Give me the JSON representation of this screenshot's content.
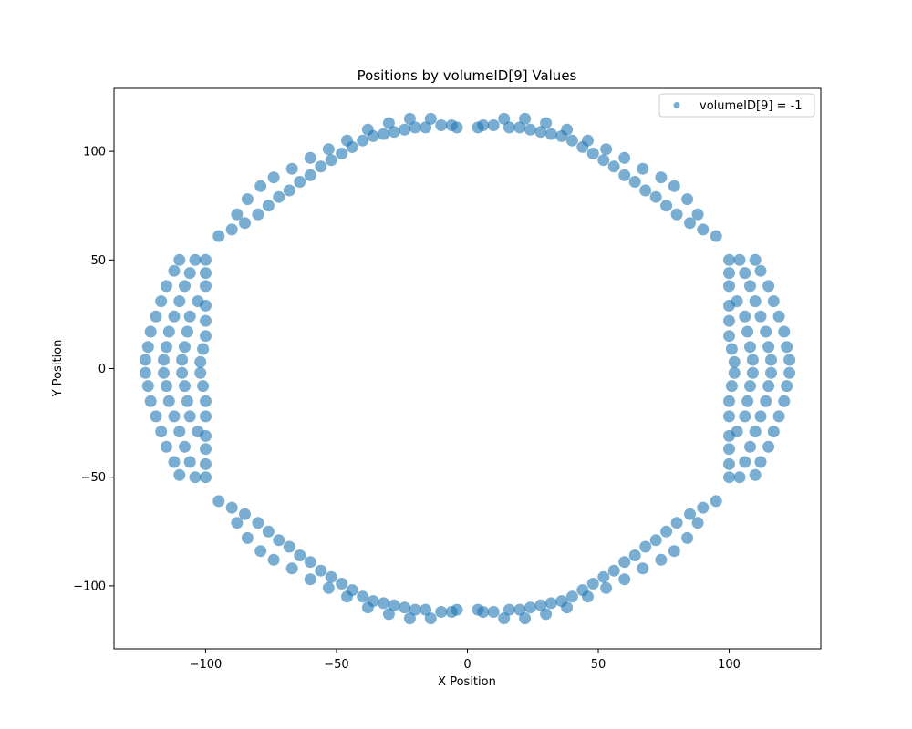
{
  "chart_data": {
    "type": "scatter",
    "title": "Positions by volumeID[9] Values",
    "xlabel": "X Position",
    "ylabel": "Y Position",
    "xlim": [
      -135,
      135
    ],
    "ylim": [
      -129,
      129
    ],
    "xticks": [
      -100,
      -50,
      0,
      50,
      100
    ],
    "yticks": [
      -100,
      -50,
      0,
      50,
      100
    ],
    "xtick_labels": [
      "−100",
      "−50",
      "0",
      "50",
      "100"
    ],
    "ytick_labels": [
      "−100",
      "−50",
      "0",
      "50",
      "100"
    ],
    "grid": false,
    "legend_position": "top-right",
    "series": [
      {
        "name": "volumeID[9] = -1",
        "color": "#1f77b4",
        "alpha": 0.6,
        "points": [
          [
            -110,
            50
          ],
          [
            -104,
            50
          ],
          [
            -100,
            50
          ],
          [
            -112,
            45
          ],
          [
            -106,
            44
          ],
          [
            -100,
            44
          ],
          [
            -115,
            38
          ],
          [
            -108,
            38
          ],
          [
            -100,
            38
          ],
          [
            -117,
            31
          ],
          [
            -110,
            31
          ],
          [
            -103,
            31
          ],
          [
            -100,
            29
          ],
          [
            -119,
            24
          ],
          [
            -112,
            24
          ],
          [
            -106,
            24
          ],
          [
            -100,
            22
          ],
          [
            -121,
            17
          ],
          [
            -114,
            17
          ],
          [
            -107,
            17
          ],
          [
            -100,
            15
          ],
          [
            -122,
            10
          ],
          [
            -115,
            10
          ],
          [
            -108,
            10
          ],
          [
            -101,
            9
          ],
          [
            -123,
            4
          ],
          [
            -116,
            4
          ],
          [
            -109,
            4
          ],
          [
            -102,
            3
          ],
          [
            -123,
            -2
          ],
          [
            -116,
            -2
          ],
          [
            -109,
            -2
          ],
          [
            -102,
            -2
          ],
          [
            -122,
            -8
          ],
          [
            -115,
            -8
          ],
          [
            -108,
            -8
          ],
          [
            -101,
            -8
          ],
          [
            -121,
            -15
          ],
          [
            -114,
            -15
          ],
          [
            -107,
            -15
          ],
          [
            -100,
            -15
          ],
          [
            -119,
            -22
          ],
          [
            -112,
            -22
          ],
          [
            -106,
            -22
          ],
          [
            -100,
            -22
          ],
          [
            -117,
            -29
          ],
          [
            -110,
            -29
          ],
          [
            -103,
            -29
          ],
          [
            -100,
            -31
          ],
          [
            -115,
            -36
          ],
          [
            -108,
            -36
          ],
          [
            -100,
            -37
          ],
          [
            -112,
            -43
          ],
          [
            -106,
            -43
          ],
          [
            -100,
            -44
          ],
          [
            -110,
            -49
          ],
          [
            -104,
            -50
          ],
          [
            -100,
            -50
          ],
          [
            100,
            50
          ],
          [
            104,
            50
          ],
          [
            110,
            50
          ],
          [
            100,
            44
          ],
          [
            106,
            44
          ],
          [
            112,
            45
          ],
          [
            100,
            38
          ],
          [
            108,
            38
          ],
          [
            115,
            38
          ],
          [
            103,
            31
          ],
          [
            110,
            31
          ],
          [
            117,
            31
          ],
          [
            100,
            29
          ],
          [
            106,
            24
          ],
          [
            112,
            24
          ],
          [
            119,
            24
          ],
          [
            100,
            22
          ],
          [
            107,
            17
          ],
          [
            114,
            17
          ],
          [
            121,
            17
          ],
          [
            100,
            15
          ],
          [
            108,
            10
          ],
          [
            115,
            10
          ],
          [
            122,
            10
          ],
          [
            101,
            9
          ],
          [
            109,
            4
          ],
          [
            116,
            4
          ],
          [
            123,
            4
          ],
          [
            102,
            3
          ],
          [
            102,
            -2
          ],
          [
            109,
            -2
          ],
          [
            116,
            -2
          ],
          [
            123,
            -2
          ],
          [
            101,
            -8
          ],
          [
            108,
            -8
          ],
          [
            115,
            -8
          ],
          [
            122,
            -8
          ],
          [
            100,
            -15
          ],
          [
            107,
            -15
          ],
          [
            114,
            -15
          ],
          [
            121,
            -15
          ],
          [
            100,
            -22
          ],
          [
            106,
            -22
          ],
          [
            112,
            -22
          ],
          [
            119,
            -22
          ],
          [
            100,
            -31
          ],
          [
            103,
            -29
          ],
          [
            110,
            -29
          ],
          [
            117,
            -29
          ],
          [
            100,
            -37
          ],
          [
            108,
            -36
          ],
          [
            115,
            -36
          ],
          [
            100,
            -44
          ],
          [
            106,
            -43
          ],
          [
            112,
            -43
          ],
          [
            100,
            -50
          ],
          [
            104,
            -50
          ],
          [
            110,
            -49
          ],
          [
            -95,
            61
          ],
          [
            -90,
            64
          ],
          [
            -88,
            71
          ],
          [
            -85,
            67
          ],
          [
            -84,
            78
          ],
          [
            -80,
            71
          ],
          [
            -79,
            84
          ],
          [
            -76,
            75
          ],
          [
            -74,
            88
          ],
          [
            -72,
            79
          ],
          [
            -68,
            82
          ],
          [
            -67,
            92
          ],
          [
            -64,
            86
          ],
          [
            -60,
            89
          ],
          [
            -60,
            97
          ],
          [
            -56,
            93
          ],
          [
            -53,
            101
          ],
          [
            -52,
            96
          ],
          [
            -48,
            99
          ],
          [
            -46,
            105
          ],
          [
            -44,
            102
          ],
          [
            -40,
            105
          ],
          [
            -38,
            110
          ],
          [
            -36,
            107
          ],
          [
            -32,
            108
          ],
          [
            -30,
            113
          ],
          [
            -28,
            109
          ],
          [
            -24,
            110
          ],
          [
            -22,
            115
          ],
          [
            -20,
            111
          ],
          [
            -16,
            111
          ],
          [
            -14,
            115
          ],
          [
            -10,
            112
          ],
          [
            -6,
            112
          ],
          [
            -4,
            111
          ],
          [
            95,
            61
          ],
          [
            90,
            64
          ],
          [
            88,
            71
          ],
          [
            85,
            67
          ],
          [
            84,
            78
          ],
          [
            80,
            71
          ],
          [
            79,
            84
          ],
          [
            76,
            75
          ],
          [
            74,
            88
          ],
          [
            72,
            79
          ],
          [
            68,
            82
          ],
          [
            67,
            92
          ],
          [
            64,
            86
          ],
          [
            60,
            89
          ],
          [
            60,
            97
          ],
          [
            56,
            93
          ],
          [
            53,
            101
          ],
          [
            52,
            96
          ],
          [
            48,
            99
          ],
          [
            46,
            105
          ],
          [
            44,
            102
          ],
          [
            40,
            105
          ],
          [
            38,
            110
          ],
          [
            36,
            107
          ],
          [
            32,
            108
          ],
          [
            30,
            113
          ],
          [
            28,
            109
          ],
          [
            24,
            110
          ],
          [
            22,
            115
          ],
          [
            20,
            111
          ],
          [
            16,
            111
          ],
          [
            14,
            115
          ],
          [
            10,
            112
          ],
          [
            6,
            112
          ],
          [
            4,
            111
          ],
          [
            -95,
            -61
          ],
          [
            -90,
            -64
          ],
          [
            -88,
            -71
          ],
          [
            -85,
            -67
          ],
          [
            -84,
            -78
          ],
          [
            -80,
            -71
          ],
          [
            -79,
            -84
          ],
          [
            -76,
            -75
          ],
          [
            -74,
            -88
          ],
          [
            -72,
            -79
          ],
          [
            -68,
            -82
          ],
          [
            -67,
            -92
          ],
          [
            -64,
            -86
          ],
          [
            -60,
            -89
          ],
          [
            -60,
            -97
          ],
          [
            -56,
            -93
          ],
          [
            -53,
            -101
          ],
          [
            -52,
            -96
          ],
          [
            -48,
            -99
          ],
          [
            -46,
            -105
          ],
          [
            -44,
            -102
          ],
          [
            -40,
            -105
          ],
          [
            -38,
            -110
          ],
          [
            -36,
            -107
          ],
          [
            -32,
            -108
          ],
          [
            -30,
            -113
          ],
          [
            -28,
            -109
          ],
          [
            -24,
            -110
          ],
          [
            -22,
            -115
          ],
          [
            -20,
            -111
          ],
          [
            -16,
            -111
          ],
          [
            -14,
            -115
          ],
          [
            -10,
            -112
          ],
          [
            -6,
            -112
          ],
          [
            -4,
            -111
          ],
          [
            95,
            -61
          ],
          [
            90,
            -64
          ],
          [
            88,
            -71
          ],
          [
            85,
            -67
          ],
          [
            84,
            -78
          ],
          [
            80,
            -71
          ],
          [
            79,
            -84
          ],
          [
            76,
            -75
          ],
          [
            74,
            -88
          ],
          [
            72,
            -79
          ],
          [
            68,
            -82
          ],
          [
            67,
            -92
          ],
          [
            64,
            -86
          ],
          [
            60,
            -89
          ],
          [
            60,
            -97
          ],
          [
            56,
            -93
          ],
          [
            53,
            -101
          ],
          [
            52,
            -96
          ],
          [
            48,
            -99
          ],
          [
            46,
            -105
          ],
          [
            44,
            -102
          ],
          [
            40,
            -105
          ],
          [
            38,
            -110
          ],
          [
            36,
            -107
          ],
          [
            32,
            -108
          ],
          [
            30,
            -113
          ],
          [
            28,
            -109
          ],
          [
            24,
            -110
          ],
          [
            22,
            -115
          ],
          [
            20,
            -111
          ],
          [
            16,
            -111
          ],
          [
            14,
            -115
          ],
          [
            10,
            -112
          ],
          [
            6,
            -112
          ],
          [
            4,
            -111
          ]
        ]
      }
    ]
  }
}
